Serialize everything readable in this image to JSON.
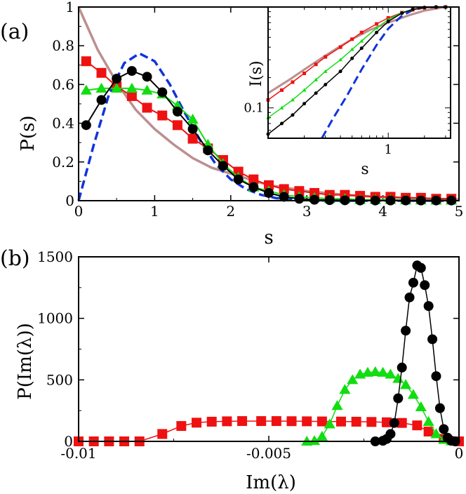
{
  "chart_data": [
    {
      "panel": "(a)",
      "type": "line",
      "xlabel": "s",
      "ylabel": "P(s)",
      "xlim": [
        0,
        5
      ],
      "ylim": [
        0,
        1
      ],
      "xticks": [
        "0",
        "1",
        "2",
        "3",
        "4",
        "5"
      ],
      "yticks": [
        "0",
        "0.2",
        "0.4",
        "0.6",
        "0.8",
        "1"
      ],
      "series": [
        {
          "name": "red-squares",
          "color": "#ee1111",
          "marker": "square",
          "x": [
            0.1,
            0.3,
            0.5,
            0.7,
            0.9,
            1.1,
            1.3,
            1.5,
            1.7,
            1.9,
            2.1,
            2.3,
            2.5,
            2.7,
            2.9,
            3.1,
            3.3,
            3.5,
            3.7,
            3.9,
            4.1,
            4.3,
            4.5,
            4.7,
            4.9
          ],
          "y": [
            0.72,
            0.66,
            0.59,
            0.54,
            0.48,
            0.44,
            0.39,
            0.32,
            0.27,
            0.21,
            0.15,
            0.11,
            0.08,
            0.06,
            0.05,
            0.04,
            0.03,
            0.03,
            0.025,
            0.02,
            0.02,
            0.015,
            0.015,
            0.01,
            0.01
          ]
        },
        {
          "name": "green-triangles",
          "color": "#11dd11",
          "marker": "triangle",
          "x": [
            0.1,
            0.3,
            0.5,
            0.7,
            0.9,
            1.1,
            1.3,
            1.5,
            1.7,
            1.9,
            2.1,
            2.3,
            2.5,
            2.7,
            2.9,
            3.1,
            3.3,
            3.5,
            3.7,
            3.9,
            4.1,
            4.3,
            4.5,
            4.7,
            4.9
          ],
          "y": [
            0.57,
            0.58,
            0.58,
            0.58,
            0.57,
            0.55,
            0.49,
            0.42,
            0.29,
            0.19,
            0.12,
            0.07,
            0.05,
            0.03,
            0.02,
            0.015,
            0.01,
            0.01,
            0.005,
            0.005,
            0.005,
            0.003,
            0.003,
            0.002,
            0.002
          ]
        },
        {
          "name": "black-circles",
          "color": "#000000",
          "marker": "circle",
          "x": [
            0.1,
            0.3,
            0.5,
            0.7,
            0.9,
            1.1,
            1.3,
            1.5,
            1.7,
            1.9,
            2.1,
            2.3,
            2.5,
            2.7,
            2.9,
            3.1,
            3.3,
            3.5,
            3.7,
            3.9,
            4.1,
            4.3,
            4.5,
            4.7,
            4.9
          ],
          "y": [
            0.39,
            0.52,
            0.63,
            0.67,
            0.64,
            0.56,
            0.46,
            0.37,
            0.26,
            0.18,
            0.11,
            0.07,
            0.04,
            0.02,
            0.01,
            0.005,
            0.003,
            0.002,
            0.001,
            0.001,
            0.001,
            0.001,
            0.001,
            0.001,
            0.001
          ]
        },
        {
          "name": "blue-dashed",
          "color": "#1133dd",
          "style": "dashed",
          "x": [
            0,
            0.2,
            0.4,
            0.6,
            0.8,
            1.0,
            1.2,
            1.4,
            1.6,
            1.8,
            2.0,
            2.2,
            2.4,
            2.6,
            2.8,
            3.0,
            3.5,
            4.0,
            5.0
          ],
          "y": [
            0,
            0.29,
            0.55,
            0.71,
            0.76,
            0.72,
            0.6,
            0.45,
            0.31,
            0.19,
            0.11,
            0.06,
            0.03,
            0.013,
            0.006,
            0.002,
            0.0,
            0.0,
            0.0
          ]
        },
        {
          "name": "brown-solid",
          "color": "#bc8f8f",
          "style": "solid",
          "x": [
            0,
            0.25,
            0.5,
            0.75,
            1.0,
            1.25,
            1.5,
            1.75,
            2.0,
            2.5,
            3.0,
            3.5,
            4.0,
            4.5,
            5.0
          ],
          "y": [
            1.0,
            0.78,
            0.61,
            0.47,
            0.37,
            0.29,
            0.22,
            0.17,
            0.14,
            0.08,
            0.05,
            0.03,
            0.018,
            0.011,
            0.007
          ]
        }
      ],
      "inset": {
        "type": "line",
        "xlabel": "s",
        "ylabel": "I(s)",
        "xscale": "log",
        "yscale": "log",
        "xtick_labels": [
          "1"
        ],
        "ytick_labels": [
          "0.1"
        ],
        "series": [
          {
            "name": "red-squares",
            "color": "#ee1111",
            "marker": "square",
            "x": [
              0.1,
              0.13,
              0.16,
              0.2,
              0.25,
              0.3,
              0.4,
              0.5,
              0.6,
              0.8,
              1.0,
              1.3,
              1.6,
              2.0,
              2.5,
              3.0
            ],
            "y": [
              0.12,
              0.15,
              0.18,
              0.22,
              0.27,
              0.32,
              0.4,
              0.48,
              0.56,
              0.68,
              0.78,
              0.88,
              0.94,
              0.98,
              0.995,
              1.0
            ]
          },
          {
            "name": "green-triangles",
            "color": "#11dd11",
            "marker": "triangle",
            "x": [
              0.1,
              0.13,
              0.16,
              0.2,
              0.25,
              0.3,
              0.4,
              0.5,
              0.6,
              0.8,
              1.0,
              1.3,
              1.6,
              2.0,
              2.5,
              3.0
            ],
            "y": [
              0.08,
              0.1,
              0.12,
              0.15,
              0.19,
              0.23,
              0.3,
              0.38,
              0.46,
              0.62,
              0.75,
              0.88,
              0.95,
              0.99,
              1.0,
              1.0
            ]
          },
          {
            "name": "black-circles",
            "color": "#000000",
            "marker": "circle",
            "x": [
              0.1,
              0.13,
              0.16,
              0.2,
              0.25,
              0.3,
              0.4,
              0.5,
              0.6,
              0.8,
              1.0,
              1.3,
              1.6,
              2.0,
              2.5,
              3.0
            ],
            "y": [
              0.055,
              0.07,
              0.085,
              0.11,
              0.14,
              0.17,
              0.23,
              0.31,
              0.39,
              0.56,
              0.72,
              0.87,
              0.95,
              0.99,
              1.0,
              1.0
            ]
          },
          {
            "name": "blue-dashed",
            "color": "#1133dd",
            "style": "dashed",
            "x": [
              0.28,
              0.35,
              0.45,
              0.6,
              0.8,
              1.0,
              1.3,
              1.6,
              2.0,
              3.0
            ],
            "y": [
              0.05,
              0.08,
              0.13,
              0.24,
              0.42,
              0.61,
              0.82,
              0.93,
              0.99,
              1.0
            ]
          },
          {
            "name": "brown-solid",
            "color": "#bc8f8f",
            "style": "solid",
            "x": [
              0.1,
              0.15,
              0.2,
              0.3,
              0.4,
              0.5,
              0.7,
              1.0,
              1.5,
              2.0,
              3.0
            ],
            "y": [
              0.14,
              0.19,
              0.24,
              0.33,
              0.41,
              0.48,
              0.59,
              0.7,
              0.83,
              0.92,
              1.0
            ]
          }
        ]
      }
    },
    {
      "panel": "(b)",
      "type": "line",
      "xlabel": "Im(λ)",
      "ylabel": "P(Im(λ))",
      "xlim": [
        -0.01,
        0
      ],
      "ylim": [
        0,
        1500
      ],
      "xticks": [
        "-0.01",
        "-0.005",
        "0"
      ],
      "yticks": [
        "0",
        "500",
        "1000",
        "1500"
      ],
      "series": [
        {
          "name": "red-squares",
          "color": "#ee1111",
          "marker": "square",
          "x": [
            -0.01,
            -0.0096,
            -0.0092,
            -0.0088,
            -0.0084,
            -0.0078,
            -0.0073,
            -0.0069,
            -0.0065,
            -0.0061,
            -0.0057,
            -0.0052,
            -0.0048,
            -0.0044,
            -0.004,
            -0.0036,
            -0.0031,
            -0.0027,
            -0.0023,
            -0.0019,
            -0.0015,
            -0.0011,
            -0.0008,
            -0.0004,
            0
          ],
          "y": [
            0,
            0,
            0,
            0,
            0,
            60,
            125,
            152,
            160,
            163,
            165,
            165,
            165,
            164,
            163,
            162,
            161,
            160,
            158,
            155,
            150,
            130,
            80,
            20,
            0
          ]
        },
        {
          "name": "green-triangles",
          "color": "#11dd11",
          "marker": "triangle",
          "x": [
            -0.004,
            -0.0038,
            -0.0036,
            -0.0034,
            -0.0032,
            -0.003,
            -0.0028,
            -0.0026,
            -0.0024,
            -0.0022,
            -0.002,
            -0.0018,
            -0.0016,
            -0.0014,
            -0.0012,
            -0.001,
            -0.0008,
            -0.0006,
            -0.0004,
            -0.0002
          ],
          "y": [
            0,
            5,
            40,
            140,
            290,
            420,
            500,
            545,
            560,
            565,
            560,
            545,
            510,
            460,
            380,
            280,
            160,
            60,
            15,
            2
          ]
        },
        {
          "name": "black-circles",
          "color": "#000000",
          "marker": "circle",
          "x": [
            -0.0022,
            -0.002,
            -0.0019,
            -0.0018,
            -0.0017,
            -0.0016,
            -0.0015,
            -0.0014,
            -0.0013,
            -0.0012,
            -0.0011,
            -0.001,
            -0.0009,
            -0.0008,
            -0.0007,
            -0.0006,
            -0.0005,
            -0.0004,
            -0.0003,
            -0.0002,
            -0.0001
          ],
          "y": [
            0,
            5,
            20,
            60,
            150,
            350,
            600,
            900,
            1170,
            1290,
            1430,
            1410,
            1270,
            1100,
            830,
            530,
            270,
            100,
            30,
            5,
            0
          ]
        }
      ]
    }
  ]
}
